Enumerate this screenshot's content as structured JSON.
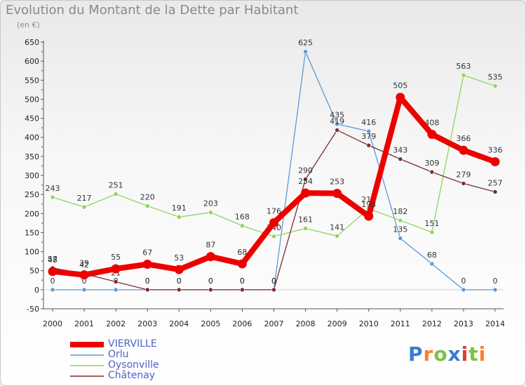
{
  "header": {
    "title": "Evolution du Montant de la Dette par Habitant",
    "unit": "(en €)"
  },
  "logo": {
    "text": "Proxiti",
    "colors": [
      "#3a7bd5",
      "#ff7f2a",
      "#7cc242",
      "#3a7bd5",
      "#e53935",
      "#7cc242",
      "#ff7f2a"
    ]
  },
  "chart_data": {
    "type": "line",
    "title": "Evolution du Montant de la Dette par Habitant",
    "ylabel": "(en €)",
    "xlabel": "",
    "x": [
      "2000",
      "2001",
      "2002",
      "2003",
      "2004",
      "2005",
      "2006",
      "2007",
      "2008",
      "2009",
      "2010",
      "2011",
      "2012",
      "2013",
      "2014"
    ],
    "ylim": [
      -50,
      650
    ],
    "yticks": [
      -50,
      0,
      50,
      100,
      150,
      200,
      250,
      300,
      350,
      400,
      450,
      500,
      550,
      600,
      650
    ],
    "grid": false,
    "legend_position": "bottom-left",
    "series": [
      {
        "name": "Orlu",
        "color": "#5b9bd5",
        "values": [
          0,
          0,
          0,
          0,
          0,
          0,
          0,
          0,
          625,
          435,
          416,
          135,
          68,
          0,
          0
        ],
        "labels": [
          "0",
          "0",
          "0",
          "0",
          "0",
          "0",
          "0",
          "0",
          "625",
          "435",
          "416",
          "135",
          "68",
          "0",
          "0"
        ]
      },
      {
        "name": "Oysonville",
        "color": "#8fd45a",
        "values": [
          243,
          217,
          251,
          220,
          191,
          203,
          168,
          140,
          161,
          141,
          213,
          182,
          151,
          563,
          535
        ],
        "labels": [
          "243",
          "217",
          "251",
          "220",
          "191",
          "203",
          "168",
          "140",
          "161",
          "141",
          "213",
          "182",
          "151",
          "563",
          "535"
        ]
      },
      {
        "name": "Châtenay",
        "color": "#7a2e2e",
        "values": [
          57,
          42,
          21,
          0,
          0,
          0,
          0,
          0,
          290,
          419,
          379,
          343,
          309,
          279,
          257
        ],
        "labels": [
          "57",
          "42",
          "21",
          "0",
          "0",
          "0",
          "0",
          "0",
          "290",
          "419",
          "379",
          "343",
          "309",
          "279",
          "257"
        ]
      },
      {
        "name": "VIERVILLE",
        "color": "#ee0000",
        "values": [
          48,
          39,
          55,
          67,
          53,
          87,
          68,
          176,
          254,
          253,
          193,
          505,
          408,
          366,
          336
        ],
        "labels": [
          "48",
          "39",
          "55",
          "67",
          "53",
          "87",
          "68",
          "176",
          "254",
          "253",
          "193",
          "505",
          "408",
          "366",
          "336"
        ]
      }
    ]
  },
  "legend": {
    "items": [
      {
        "label": "VIERVILLE",
        "color": "#ee0000"
      },
      {
        "label": "Orlu",
        "color": "#5b9bd5"
      },
      {
        "label": "Oysonville",
        "color": "#8fd45a"
      },
      {
        "label": "Châtenay",
        "color": "#7a2e2e"
      }
    ]
  }
}
